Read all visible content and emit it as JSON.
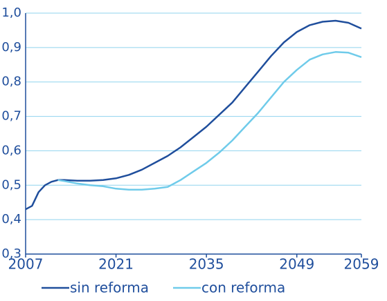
{
  "chart_data": {
    "type": "line",
    "x": [
      2007,
      2008,
      2009,
      2010,
      2011,
      2012,
      2013,
      2015,
      2017,
      2019,
      2021,
      2023,
      2025,
      2027,
      2029,
      2031,
      2033,
      2035,
      2037,
      2039,
      2041,
      2043,
      2045,
      2047,
      2049,
      2051,
      2053,
      2055,
      2057,
      2059
    ],
    "series": [
      {
        "name": "sin reforma",
        "color": "#1f4e9c",
        "values": [
          0.43,
          0.44,
          0.48,
          0.5,
          0.51,
          0.515,
          0.515,
          0.513,
          0.513,
          0.515,
          0.52,
          0.53,
          0.545,
          0.565,
          0.585,
          0.61,
          0.64,
          0.67,
          0.705,
          0.74,
          0.785,
          0.83,
          0.875,
          0.915,
          0.945,
          0.965,
          0.975,
          0.978,
          0.972,
          0.955
        ]
      },
      {
        "name": "con reforma",
        "color": "#6fcbea",
        "values": [
          null,
          null,
          null,
          null,
          null,
          0.515,
          0.512,
          0.505,
          0.5,
          0.497,
          0.49,
          0.487,
          0.487,
          0.49,
          0.495,
          0.515,
          0.54,
          0.565,
          0.595,
          0.63,
          0.67,
          0.71,
          0.755,
          0.8,
          0.835,
          0.865,
          0.88,
          0.887,
          0.885,
          0.872
        ]
      }
    ],
    "xlim": [
      2007,
      2059
    ],
    "xticks": [
      2007,
      2021,
      2035,
      2049,
      2059
    ],
    "ylim": [
      0.3,
      1.0
    ],
    "yticks": [
      {
        "value": 0.3,
        "label": "0,3"
      },
      {
        "value": 0.4,
        "label": "0,4"
      },
      {
        "value": 0.5,
        "label": "0,5"
      },
      {
        "value": 0.6,
        "label": "0,6"
      },
      {
        "value": 0.7,
        "label": "0,7"
      },
      {
        "value": 0.8,
        "label": "0,8"
      },
      {
        "value": 0.9,
        "label": "0,9"
      },
      {
        "value": 1.0,
        "label": "1,0"
      }
    ],
    "grid": true
  }
}
